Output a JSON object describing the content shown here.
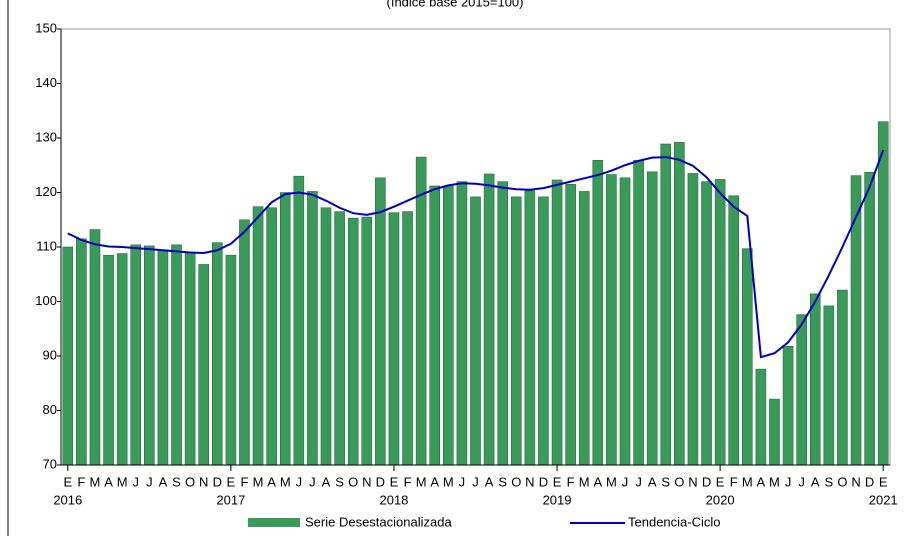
{
  "chart_data": {
    "type": "bar",
    "subtitle": "(índice base 2015=100)",
    "categories": [
      "E",
      "F",
      "M",
      "A",
      "M",
      "J",
      "J",
      "A",
      "S",
      "O",
      "N",
      "D",
      "E",
      "F",
      "M",
      "A",
      "M",
      "J",
      "J",
      "A",
      "S",
      "O",
      "N",
      "D",
      "E",
      "F",
      "M",
      "A",
      "M",
      "J",
      "J",
      "A",
      "S",
      "O",
      "N",
      "D",
      "E",
      "F",
      "M",
      "A",
      "M",
      "J",
      "J",
      "A",
      "S",
      "O",
      "N",
      "D",
      "E",
      "F",
      "M",
      "A",
      "M",
      "J",
      "J",
      "A",
      "S",
      "O",
      "N",
      "D",
      "E"
    ],
    "years": [
      "2016",
      "2017",
      "2018",
      "2019",
      "2020",
      "2021"
    ],
    "series": [
      {
        "name": "Serie Desestacionalizada",
        "type": "bar",
        "color": "#3a9a5a",
        "values": [
          110,
          111.5,
          113.2,
          108.5,
          108.8,
          110.4,
          110.2,
          109.5,
          110.4,
          109,
          106.8,
          110.8,
          108.5,
          115,
          117.4,
          117.2,
          120,
          123,
          120.2,
          117.2,
          116.5,
          115.3,
          115.5,
          122.7,
          116.3,
          116.5,
          126.5,
          121.2,
          121.2,
          122,
          119.2,
          123.4,
          122,
          119.2,
          120.3,
          119.2,
          122.3,
          121.5,
          120.2,
          125.9,
          123.3,
          122.7,
          125.9,
          123.8,
          128.9,
          129.2,
          123.5,
          122,
          122.4,
          119.4,
          109.7,
          87.6,
          82.1,
          91.8,
          97.6,
          101.4,
          99.2,
          102.1,
          123.1,
          123.7,
          133
        ]
      },
      {
        "name": "Tendencia-Ciclo",
        "type": "line",
        "color": "#0000c0",
        "values": [
          112.5,
          111.3,
          110.5,
          110.1,
          110,
          109.8,
          109.6,
          109.4,
          109.2,
          109,
          108.9,
          109.4,
          110.6,
          112.8,
          115.5,
          118.2,
          119.7,
          120,
          119.6,
          118.5,
          117.2,
          116.2,
          115.9,
          116.4,
          117.4,
          118.5,
          119.6,
          120.6,
          121.3,
          121.7,
          121.6,
          121.3,
          120.9,
          120.6,
          120.5,
          120.8,
          121.4,
          122,
          122.6,
          123.2,
          124,
          125,
          125.8,
          126.4,
          126.5,
          126,
          124.9,
          122.8,
          119.9,
          117.4,
          115.7,
          89.8,
          90.5,
          92.5,
          95.8,
          100,
          104.8,
          110,
          115.5,
          121,
          127.8
        ]
      }
    ],
    "ylim": [
      70,
      150
    ],
    "yticks": [
      70,
      80,
      90,
      100,
      110,
      120,
      130,
      140,
      150
    ]
  }
}
